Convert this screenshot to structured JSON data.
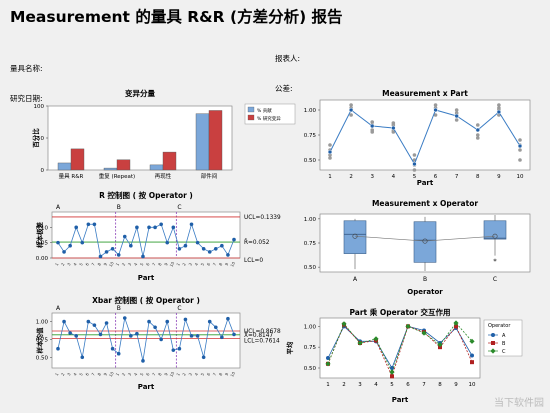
{
  "report": {
    "title": "Measurement 的量具 R&R (方差分析) 报告",
    "left_meta": [
      "量具名称:",
      "研究日期:"
    ],
    "right_meta": [
      "报表人:",
      "公差:",
      "其他:"
    ]
  },
  "watermark": "当下软件园",
  "chart_data": [
    {
      "id": "variance",
      "type": "bar",
      "title": "变异分量",
      "ylabel": "百分比",
      "ylim": [
        0,
        100
      ],
      "yticks": [
        0,
        50,
        100
      ],
      "categories": [
        "量具 R&R",
        "重复 (Repeat)",
        "再现性",
        "部件间"
      ],
      "series": [
        {
          "name": "% 贡献",
          "color": "#7ba7d9",
          "values": [
            11,
            3,
            8,
            88
          ]
        },
        {
          "name": "% 研究变异",
          "color": "#c94040",
          "values": [
            33,
            16,
            28,
            93
          ]
        }
      ],
      "legend": "right"
    },
    {
      "id": "meas_part",
      "type": "scatter",
      "title": "Measurement x Part",
      "xlabel": "Part",
      "ylim": [
        0.4,
        1.1
      ],
      "yticks": [
        0.5,
        0.75,
        1.0
      ],
      "x": [
        1,
        2,
        3,
        4,
        5,
        6,
        7,
        8,
        9,
        10
      ],
      "mean": [
        0.58,
        1.0,
        0.84,
        0.82,
        0.46,
        1.0,
        0.94,
        0.8,
        0.98,
        0.64
      ],
      "points": [
        [
          0.52,
          0.55,
          0.65,
          0.6
        ],
        [
          0.95,
          1.0,
          1.02,
          1.05
        ],
        [
          0.78,
          0.8,
          0.85,
          0.88
        ],
        [
          0.78,
          0.8,
          0.85,
          0.87
        ],
        [
          0.4,
          0.45,
          0.5,
          0.55
        ],
        [
          0.95,
          1.0,
          1.02,
          1.05
        ],
        [
          0.9,
          0.95,
          0.97,
          1.0
        ],
        [
          0.72,
          0.75,
          0.8,
          0.85
        ],
        [
          0.95,
          1.0,
          1.02,
          1.05
        ],
        [
          0.5,
          0.6,
          0.65,
          0.7
        ]
      ]
    },
    {
      "id": "r_chart",
      "type": "line",
      "title": "R 控制图 ( 按 Operator )",
      "xlabel": "Part",
      "ylabel": "样本极差",
      "ylim": [
        0,
        0.15
      ],
      "yticks": [
        0.0,
        0.05,
        0.1
      ],
      "groups": [
        "A",
        "B",
        "C"
      ],
      "values": [
        0.05,
        0.02,
        0.04,
        0.1,
        0.05,
        0.11,
        0.11,
        0.005,
        0.02,
        0.03,
        0.01,
        0.07,
        0.04,
        0.1,
        0.005,
        0.1,
        0.1,
        0.11,
        0.05,
        0.1,
        0.03,
        0.04,
        0.11,
        0.05,
        0.03,
        0.02,
        0.03,
        0.04,
        0.01,
        0.06
      ],
      "ucl": 0.1339,
      "center": 0.052,
      "lcl": 0,
      "labels": {
        "ucl": "UCL=0.1339",
        "center": "R̄=0.052",
        "lcl": "LCL=0"
      }
    },
    {
      "id": "meas_operator",
      "type": "boxplot",
      "title": "Measurement x Operator",
      "xlabel": "Operator",
      "ylim": [
        0.45,
        1.05
      ],
      "yticks": [
        0.5,
        0.75,
        1.0
      ],
      "categories": [
        "A",
        "B",
        "C"
      ],
      "boxes": [
        {
          "min": 0.48,
          "q1": 0.64,
          "median": 0.84,
          "q3": 0.98,
          "max": 1.0,
          "mean": 0.82
        },
        {
          "min": 0.46,
          "q1": 0.55,
          "median": 0.78,
          "q3": 0.97,
          "max": 1.02,
          "mean": 0.77
        },
        {
          "min": 0.62,
          "q1": 0.79,
          "median": 0.8,
          "q3": 0.98,
          "max": 1.04,
          "mean": 0.82
        }
      ],
      "outliers": [
        {
          "category": "C",
          "value": 0.57
        }
      ]
    },
    {
      "id": "xbar_chart",
      "type": "line",
      "title": "Xbar 控制图 ( 按 Operator )",
      "xlabel": "Part",
      "ylabel": "样本均值",
      "ylim": [
        0.35,
        1.12
      ],
      "yticks": [
        0.5,
        0.75,
        1.0
      ],
      "groups": [
        "A",
        "B",
        "C"
      ],
      "values": [
        0.62,
        1.0,
        0.84,
        0.8,
        0.5,
        1.0,
        0.95,
        0.82,
        0.98,
        0.62,
        0.55,
        1.05,
        0.8,
        0.83,
        0.45,
        1.0,
        0.92,
        0.75,
        1.0,
        0.6,
        0.62,
        1.03,
        0.8,
        0.8,
        0.5,
        1.0,
        0.92,
        0.78,
        1.04,
        0.82
      ],
      "ucl": 0.8678,
      "center": 0.8147,
      "lcl": 0.7614,
      "labels": {
        "ucl": "UCL=0.8678",
        "center": "X̄=0.8147",
        "lcl": "LCL=0.7614"
      }
    },
    {
      "id": "interaction",
      "type": "line",
      "title": "Part 乘 Operator 交互作用",
      "xlabel": "Part",
      "ylabel": "平均",
      "ylim": [
        0.38,
        1.1
      ],
      "yticks": [
        0.5,
        0.75,
        1.0
      ],
      "x": [
        1,
        2,
        3,
        4,
        5,
        6,
        7,
        8,
        9,
        10
      ],
      "legend_title": "Operator",
      "series": [
        {
          "name": "A",
          "color": "#1f5fa8",
          "marker": "circle",
          "values": [
            0.62,
            1.0,
            0.82,
            0.82,
            0.5,
            1.0,
            0.95,
            0.8,
            0.98,
            0.65
          ]
        },
        {
          "name": "B",
          "color": "#b02020",
          "marker": "square",
          "values": [
            0.55,
            1.02,
            0.8,
            0.83,
            0.4,
            1.0,
            0.93,
            0.75,
            1.0,
            0.57
          ]
        },
        {
          "name": "C",
          "color": "#2a8a2a",
          "marker": "diamond",
          "values": [
            0.55,
            1.03,
            0.8,
            0.85,
            0.45,
            1.0,
            0.92,
            0.78,
            1.04,
            0.82
          ]
        }
      ],
      "legend": "right"
    }
  ]
}
